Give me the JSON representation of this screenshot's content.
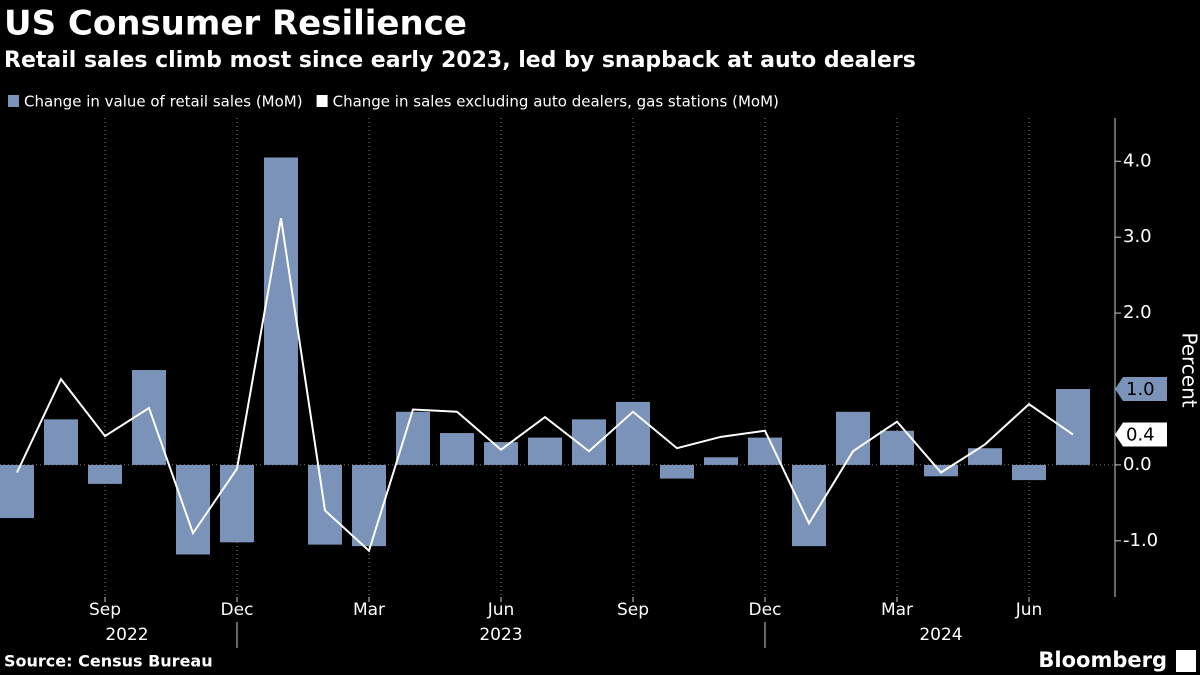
{
  "chart_data": {
    "type": "bar",
    "title": "US Consumer Resilience",
    "subtitle": "Retail sales climb most since early 2023, led by snapback at auto dealers",
    "categories": [
      null,
      null,
      "Sep",
      null,
      null,
      "Dec",
      null,
      null,
      "Mar",
      null,
      null,
      "Jun",
      null,
      null,
      "Sep",
      null,
      null,
      "Dec",
      null,
      null,
      "Mar",
      null,
      null,
      "Jun",
      null
    ],
    "years": [
      "2022",
      "2023",
      "2024"
    ],
    "series": [
      {
        "name": "Change in value of retail sales (MoM)",
        "type": "bar",
        "color": "#7b93b8",
        "values": [
          -0.7,
          0.6,
          -0.25,
          1.25,
          -1.18,
          -1.02,
          4.05,
          -1.05,
          -1.07,
          0.7,
          0.42,
          0.3,
          0.36,
          0.6,
          0.83,
          -0.18,
          0.1,
          0.36,
          -1.07,
          0.7,
          0.45,
          -0.15,
          0.22,
          -0.2,
          1.0
        ],
        "value_labels": [
          null,
          null,
          null,
          null,
          null,
          null,
          null,
          null,
          null,
          null,
          null,
          null,
          null,
          null,
          null,
          null,
          null,
          null,
          null,
          null,
          null,
          null,
          null,
          null,
          "1.0"
        ]
      },
      {
        "name": "Change in sales excluding auto dealers, gas stations (MoM)",
        "type": "line",
        "color": "#ffffff",
        "values": [
          -0.1,
          1.13,
          0.38,
          0.75,
          -0.9,
          -0.05,
          3.25,
          -0.6,
          -1.13,
          0.73,
          0.7,
          0.2,
          0.63,
          0.18,
          0.7,
          0.22,
          0.37,
          0.45,
          -0.77,
          0.18,
          0.57,
          -0.1,
          0.27,
          0.8,
          0.4
        ],
        "value_labels": [
          null,
          null,
          null,
          null,
          null,
          null,
          null,
          null,
          null,
          null,
          null,
          null,
          null,
          null,
          null,
          null,
          null,
          null,
          null,
          null,
          null,
          null,
          null,
          null,
          "0.4"
        ]
      }
    ],
    "y_label": "Percent",
    "ylim": [
      -1.74,
      4.57
    ],
    "yticks": [
      {
        "value": -1,
        "label": "-1.0"
      },
      {
        "value": 0,
        "label": "0.0"
      },
      {
        "value": 1,
        "label": "1.0"
      },
      {
        "value": 2,
        "label": "2.0"
      },
      {
        "value": 3,
        "label": "3.0"
      },
      {
        "value": 4,
        "label": "4.0"
      }
    ],
    "source": "Source: Census Bureau",
    "brand": "Bloomberg"
  }
}
